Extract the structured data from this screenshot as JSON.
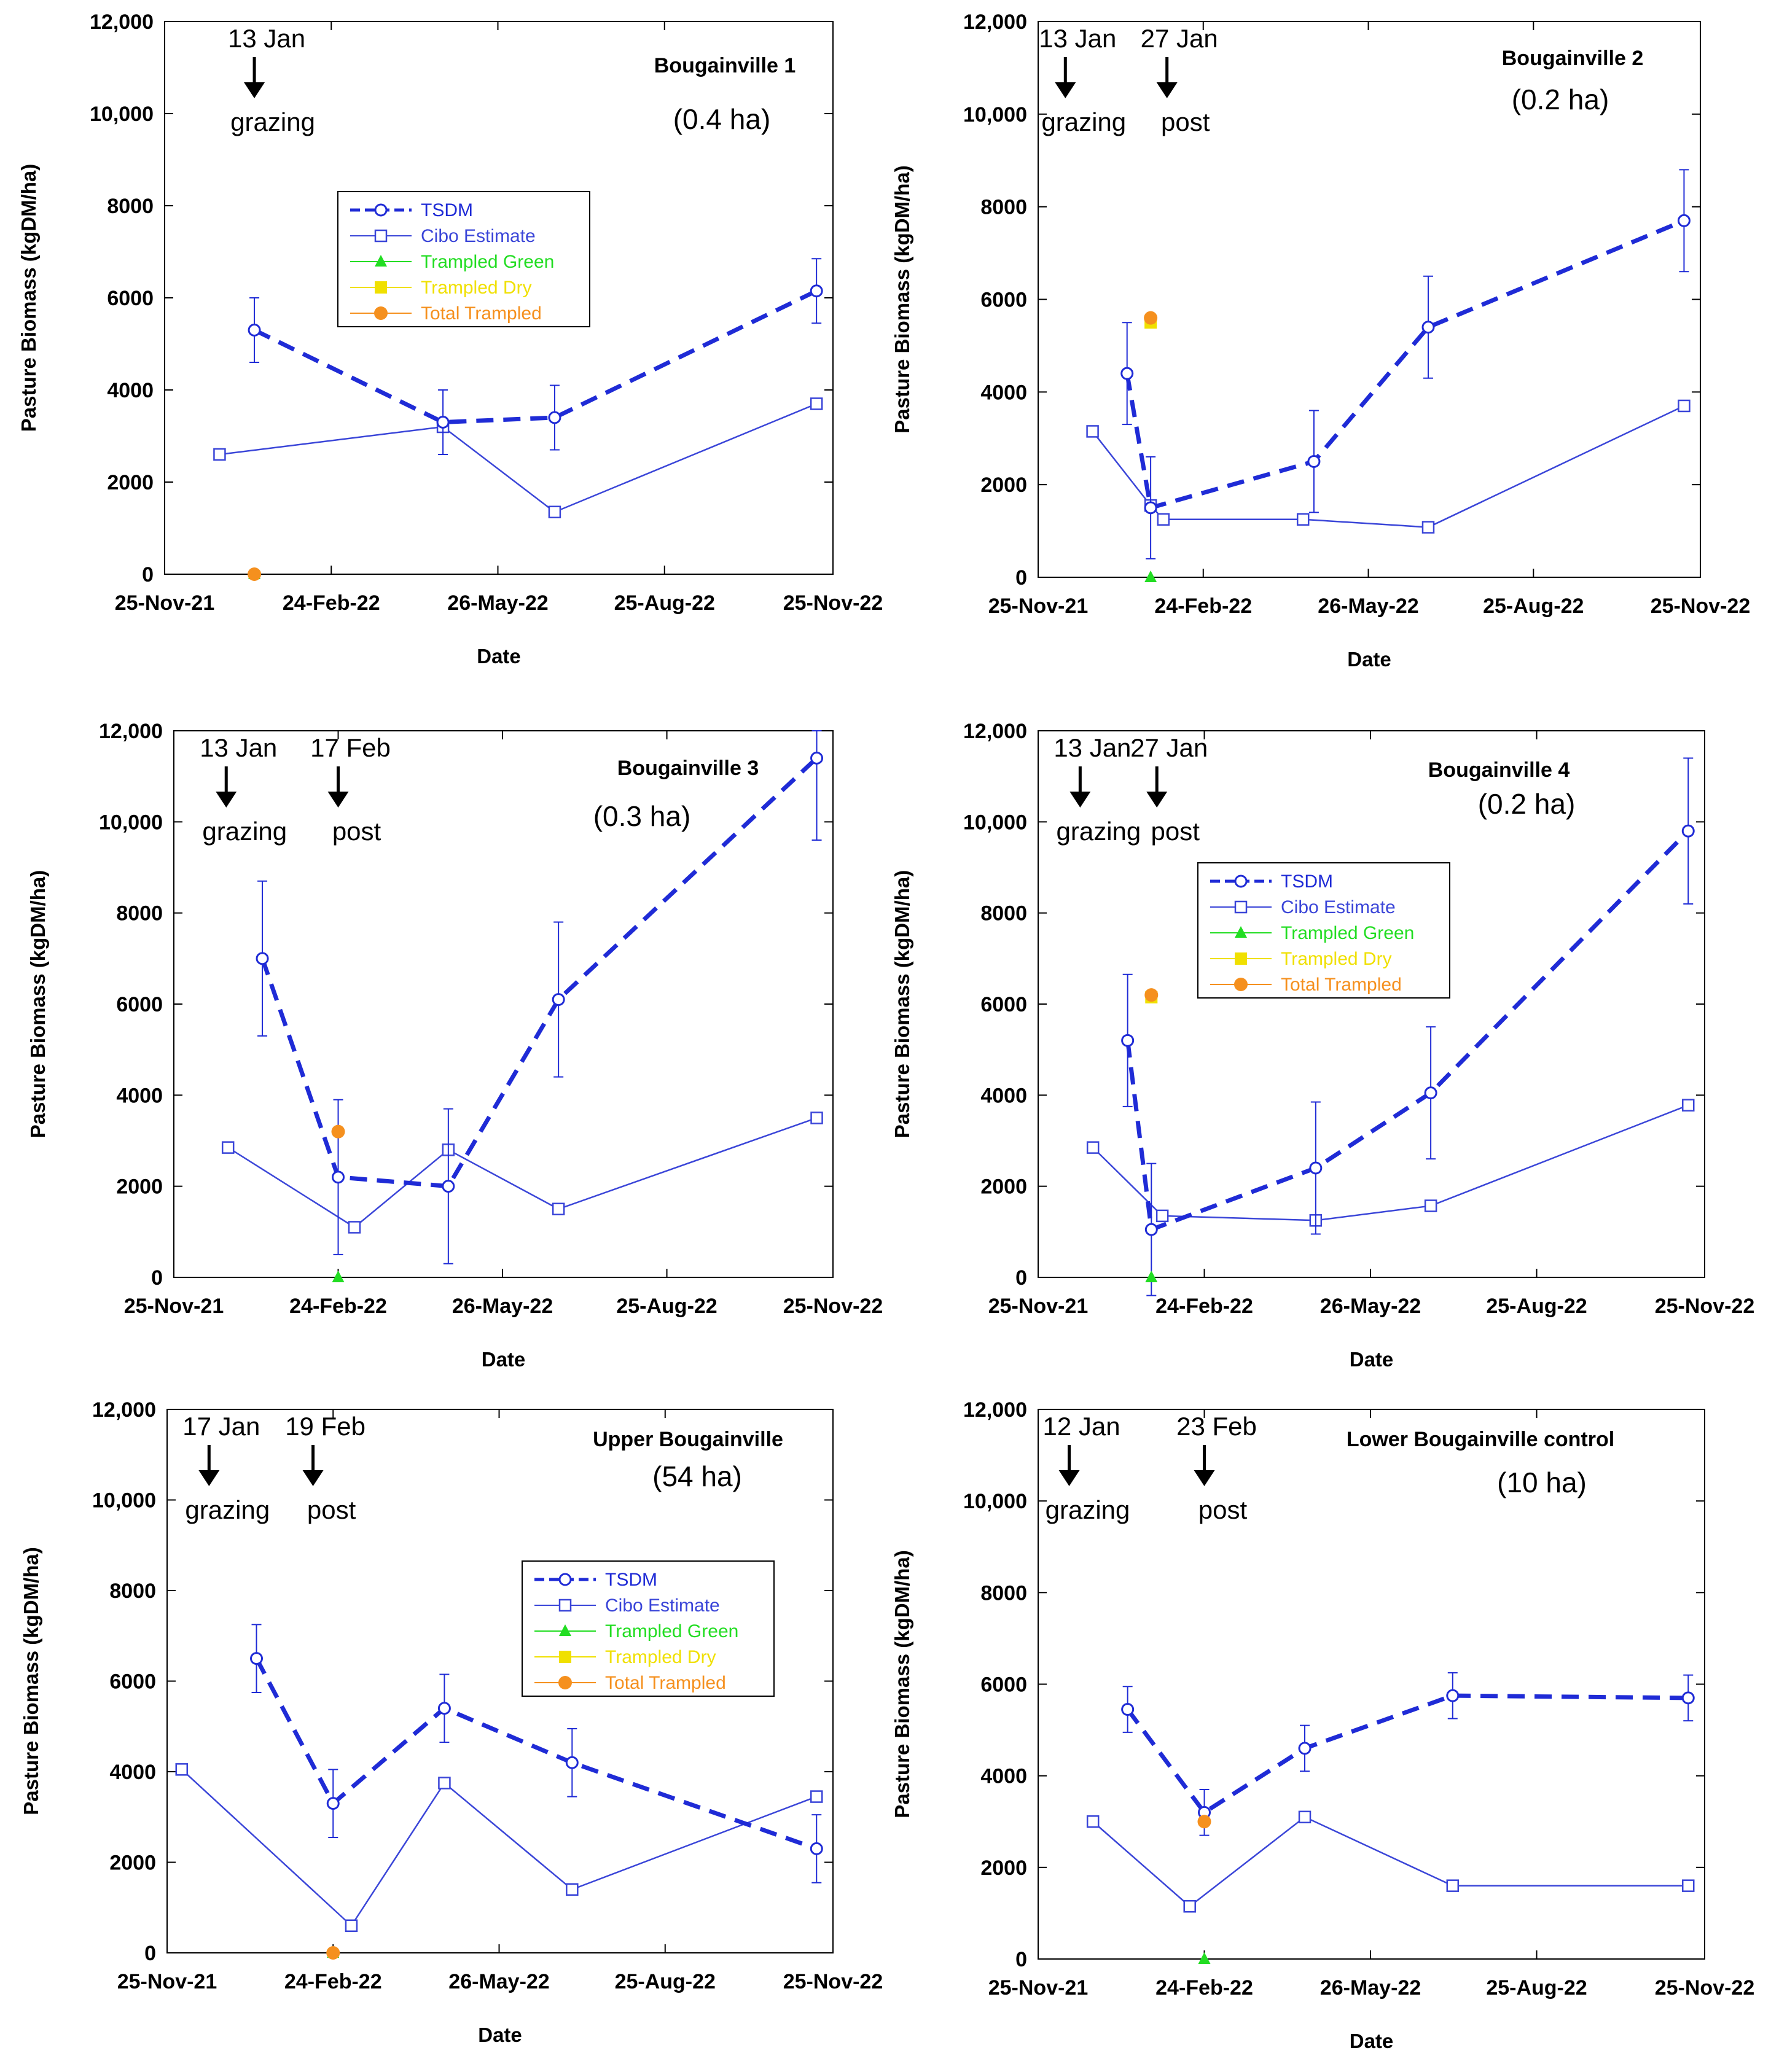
{
  "colors": {
    "tsdm": "#1f2bd6",
    "cibo": "#3a45d8",
    "trampled_green": "#22dd22",
    "trampled_dry": "#f0e000",
    "total_trampled": "#f5901e",
    "axis": "#000000"
  },
  "chart_data": [
    {
      "type": "line",
      "title": "Bougainville 1",
      "area": "(0.4 ha)",
      "xlabel": "Date",
      "ylabel": "Pasture Biomass (kgDM/ha)",
      "xlim": [
        0,
        365
      ],
      "ylim": [
        0,
        12000
      ],
      "x_ticks": [
        {
          "x": 0,
          "label": "25-Nov-21"
        },
        {
          "x": 91,
          "label": "24-Feb-22"
        },
        {
          "x": 182,
          "label": "26-May-22"
        },
        {
          "x": 273,
          "label": "25-Aug-22"
        },
        {
          "x": 365,
          "label": "25-Nov-22"
        }
      ],
      "y_ticks": [
        {
          "v": 0,
          "label": "0"
        },
        {
          "v": 2000,
          "label": "2000"
        },
        {
          "v": 4000,
          "label": "4000"
        },
        {
          "v": 6000,
          "label": "6000"
        },
        {
          "v": 8000,
          "label": "8000"
        },
        {
          "v": 10000,
          "label": "10,000"
        },
        {
          "v": 12000,
          "label": "12,000"
        }
      ],
      "annotations": [
        {
          "x": 49,
          "top": "13 Jan",
          "bottom": "grazing"
        }
      ],
      "legend": {
        "show": true,
        "position": "center",
        "entries": [
          "TSDM",
          "Cibo Estimate",
          "Trampled Green",
          "Trampled Dry",
          "Total Trampled"
        ]
      },
      "series": {
        "tsdm": {
          "x": [
            49,
            152,
            213,
            356
          ],
          "y": [
            5300,
            3300,
            3400,
            6150
          ],
          "err": [
            700,
            700,
            700,
            700
          ]
        },
        "cibo": {
          "x": [
            30,
            152,
            213,
            356
          ],
          "y": [
            2600,
            3200,
            1350,
            3700
          ]
        },
        "trampled_green": {
          "x": [
            49
          ],
          "y": [
            0
          ]
        },
        "trampled_dry": {
          "x": [],
          "y": []
        },
        "total_trampled": {
          "x": [
            49
          ],
          "y": [
            0
          ]
        }
      }
    },
    {
      "type": "line",
      "title": "Bougainville 2",
      "area": "(0.2 ha)",
      "xlabel": "Date",
      "ylabel": "Pasture Biomass (kgDM/ha)",
      "xlim": [
        0,
        365
      ],
      "ylim": [
        0,
        12000
      ],
      "x_ticks": [
        {
          "x": 0,
          "label": "25-Nov-21"
        },
        {
          "x": 91,
          "label": "24-Feb-22"
        },
        {
          "x": 182,
          "label": "26-May-22"
        },
        {
          "x": 273,
          "label": "25-Aug-22"
        },
        {
          "x": 365,
          "label": "25-Nov-22"
        }
      ],
      "y_ticks": [
        {
          "v": 0,
          "label": "0"
        },
        {
          "v": 2000,
          "label": "2000"
        },
        {
          "v": 4000,
          "label": "4000"
        },
        {
          "v": 6000,
          "label": "6000"
        },
        {
          "v": 8000,
          "label": "8000"
        },
        {
          "v": 10000,
          "label": "10,000"
        },
        {
          "v": 12000,
          "label": "12,000"
        }
      ],
      "annotations": [
        {
          "x": 15,
          "top": "13 Jan",
          "bottom": "grazing"
        },
        {
          "x": 71,
          "top": "27 Jan",
          "bottom": "post"
        }
      ],
      "legend": {
        "show": false,
        "position": "",
        "entries": []
      },
      "series": {
        "tsdm": {
          "x": [
            49,
            62,
            152,
            215,
            356
          ],
          "y": [
            4400,
            1500,
            2500,
            5400,
            7700
          ],
          "err": [
            1100,
            1100,
            1100,
            1100,
            1100
          ]
        },
        "cibo": {
          "x": [
            30,
            62,
            69,
            146,
            215,
            356
          ],
          "y": [
            3150,
            1550,
            1250,
            1250,
            1080,
            3700
          ]
        },
        "trampled_green": {
          "x": [
            62
          ],
          "y": [
            0
          ]
        },
        "trampled_dry": {
          "x": [
            62
          ],
          "y": [
            5500
          ]
        },
        "total_trampled": {
          "x": [
            62
          ],
          "y": [
            5600
          ]
        }
      }
    },
    {
      "type": "line",
      "title": "Bougainville 3",
      "area": "(0.3 ha)",
      "xlabel": "Date",
      "ylabel": "Pasture Biomass (kgDM/ha)",
      "xlim": [
        0,
        365
      ],
      "ylim": [
        0,
        12000
      ],
      "x_ticks": [
        {
          "x": 0,
          "label": "25-Nov-21"
        },
        {
          "x": 91,
          "label": "24-Feb-22"
        },
        {
          "x": 182,
          "label": "26-May-22"
        },
        {
          "x": 273,
          "label": "25-Aug-22"
        },
        {
          "x": 365,
          "label": "25-Nov-22"
        }
      ],
      "y_ticks": [
        {
          "v": 0,
          "label": "0"
        },
        {
          "v": 2000,
          "label": "2000"
        },
        {
          "v": 4000,
          "label": "4000"
        },
        {
          "v": 6000,
          "label": "6000"
        },
        {
          "v": 8000,
          "label": "8000"
        },
        {
          "v": 10000,
          "label": "10,000"
        },
        {
          "v": 12000,
          "label": "12,000"
        }
      ],
      "annotations": [
        {
          "x": 29,
          "top": "13 Jan",
          "bottom": "grazing"
        },
        {
          "x": 91,
          "top": "17 Feb",
          "bottom": "post"
        }
      ],
      "legend": {
        "show": false,
        "position": "",
        "entries": []
      },
      "series": {
        "tsdm": {
          "x": [
            49,
            91,
            152,
            213,
            356
          ],
          "y": [
            7000,
            2200,
            2000,
            6100,
            11400
          ],
          "err": [
            1700,
            1700,
            1700,
            1700,
            1800
          ]
        },
        "cibo": {
          "x": [
            30,
            100,
            152,
            213,
            356
          ],
          "y": [
            2850,
            1100,
            2800,
            1500,
            3500
          ]
        },
        "trampled_green": {
          "x": [
            91
          ],
          "y": [
            0
          ]
        },
        "trampled_dry": {
          "x": [],
          "y": []
        },
        "total_trampled": {
          "x": [
            91
          ],
          "y": [
            3200
          ]
        }
      }
    },
    {
      "type": "line",
      "title": "Bougainville 4",
      "area": "(0.2 ha)",
      "xlabel": "Date",
      "ylabel": "Pasture Biomass (kgDM/ha)",
      "xlim": [
        0,
        365
      ],
      "ylim": [
        0,
        12000
      ],
      "x_ticks": [
        {
          "x": 0,
          "label": "25-Nov-21"
        },
        {
          "x": 91,
          "label": "24-Feb-22"
        },
        {
          "x": 182,
          "label": "26-May-22"
        },
        {
          "x": 273,
          "label": "25-Aug-22"
        },
        {
          "x": 365,
          "label": "25-Nov-22"
        }
      ],
      "y_ticks": [
        {
          "v": 0,
          "label": "0"
        },
        {
          "v": 2000,
          "label": "2000"
        },
        {
          "v": 4000,
          "label": "4000"
        },
        {
          "v": 6000,
          "label": "6000"
        },
        {
          "v": 8000,
          "label": "8000"
        },
        {
          "v": 10000,
          "label": "10,000"
        },
        {
          "v": 12000,
          "label": "12,000"
        }
      ],
      "annotations": [
        {
          "x": 23,
          "top": "13 Jan",
          "bottom": "grazing"
        },
        {
          "x": 65,
          "top": "27 Jan",
          "bottom": "post"
        }
      ],
      "legend": {
        "show": true,
        "position": "center",
        "entries": [
          "TSDM",
          "Cibo Estimate",
          "Trampled Green",
          "Trampled Dry",
          "Total Trampled"
        ]
      },
      "series": {
        "tsdm": {
          "x": [
            49,
            62,
            152,
            215,
            356
          ],
          "y": [
            5200,
            1050,
            2400,
            4050,
            9800
          ],
          "err": [
            1450,
            1450,
            1450,
            1450,
            1600
          ]
        },
        "cibo": {
          "x": [
            30,
            68,
            152,
            215,
            356
          ],
          "y": [
            2850,
            1350,
            1250,
            1570,
            3780
          ]
        },
        "trampled_green": {
          "x": [
            62
          ],
          "y": [
            0
          ]
        },
        "trampled_dry": {
          "x": [
            62
          ],
          "y": [
            6150
          ]
        },
        "total_trampled": {
          "x": [
            62
          ],
          "y": [
            6200
          ]
        }
      }
    },
    {
      "type": "line",
      "title": "Upper Bougainville",
      "area": "(54 ha)",
      "xlabel": "Date",
      "ylabel": "Pasture Biomass (kgDM/ha)",
      "xlim": [
        0,
        365
      ],
      "ylim": [
        0,
        12000
      ],
      "x_ticks": [
        {
          "x": 0,
          "label": "25-Nov-21"
        },
        {
          "x": 91,
          "label": "24-Feb-22"
        },
        {
          "x": 182,
          "label": "26-May-22"
        },
        {
          "x": 273,
          "label": "25-Aug-22"
        },
        {
          "x": 365,
          "label": "25-Nov-22"
        }
      ],
      "y_ticks": [
        {
          "v": 0,
          "label": "0"
        },
        {
          "v": 2000,
          "label": "2000"
        },
        {
          "v": 4000,
          "label": "4000"
        },
        {
          "v": 6000,
          "label": "6000"
        },
        {
          "v": 8000,
          "label": "8000"
        },
        {
          "v": 10000,
          "label": "10,000"
        },
        {
          "v": 12000,
          "label": "12,000"
        }
      ],
      "annotations": [
        {
          "x": 23,
          "top": "17 Jan",
          "bottom": "grazing"
        },
        {
          "x": 80,
          "top": "19 Feb",
          "bottom": "post"
        }
      ],
      "legend": {
        "show": true,
        "position": "center-right",
        "entries": [
          "TSDM",
          "Cibo Estimate",
          "Trampled Green",
          "Trampled Dry",
          "Total Trampled"
        ]
      },
      "series": {
        "tsdm": {
          "x": [
            49,
            91,
            152,
            222,
            356
          ],
          "y": [
            6500,
            3300,
            5400,
            4200,
            2300
          ],
          "err": [
            750,
            750,
            750,
            750,
            750
          ]
        },
        "cibo": {
          "x": [
            8,
            101,
            152,
            222,
            356
          ],
          "y": [
            4050,
            600,
            3750,
            1400,
            3450
          ]
        },
        "trampled_green": {
          "x": [
            91
          ],
          "y": [
            0
          ]
        },
        "trampled_dry": {
          "x": [],
          "y": []
        },
        "total_trampled": {
          "x": [
            91
          ],
          "y": [
            0
          ]
        }
      }
    },
    {
      "type": "line",
      "title": "Lower Bougainville control",
      "area": "(10 ha)",
      "xlabel": "Date",
      "ylabel": "Pasture Biomass (kgDM/ha)",
      "xlim": [
        0,
        365
      ],
      "ylim": [
        0,
        12000
      ],
      "x_ticks": [
        {
          "x": 0,
          "label": "25-Nov-21"
        },
        {
          "x": 91,
          "label": "24-Feb-22"
        },
        {
          "x": 182,
          "label": "26-May-22"
        },
        {
          "x": 273,
          "label": "25-Aug-22"
        },
        {
          "x": 365,
          "label": "25-Nov-22"
        }
      ],
      "y_ticks": [
        {
          "v": 0,
          "label": "0"
        },
        {
          "v": 2000,
          "label": "2000"
        },
        {
          "v": 4000,
          "label": "4000"
        },
        {
          "v": 6000,
          "label": "6000"
        },
        {
          "v": 8000,
          "label": "8000"
        },
        {
          "v": 10000,
          "label": "10,000"
        },
        {
          "v": 12000,
          "label": "12,000"
        }
      ],
      "annotations": [
        {
          "x": 17,
          "top": "12 Jan",
          "bottom": "grazing"
        },
        {
          "x": 91,
          "top": "23 Feb",
          "bottom": "post"
        }
      ],
      "legend": {
        "show": false,
        "position": "",
        "entries": []
      },
      "series": {
        "tsdm": {
          "x": [
            49,
            91,
            146,
            227,
            356
          ],
          "y": [
            5450,
            3200,
            4600,
            5750,
            5700
          ],
          "err": [
            500,
            500,
            500,
            500,
            500
          ]
        },
        "cibo": {
          "x": [
            30,
            83,
            146,
            227,
            356
          ],
          "y": [
            3000,
            1150,
            3100,
            1600,
            1600
          ]
        },
        "trampled_green": {
          "x": [
            91
          ],
          "y": [
            0
          ]
        },
        "trampled_dry": {
          "x": [],
          "y": []
        },
        "total_trampled": {
          "x": [
            91
          ],
          "y": [
            3000
          ]
        }
      }
    }
  ]
}
